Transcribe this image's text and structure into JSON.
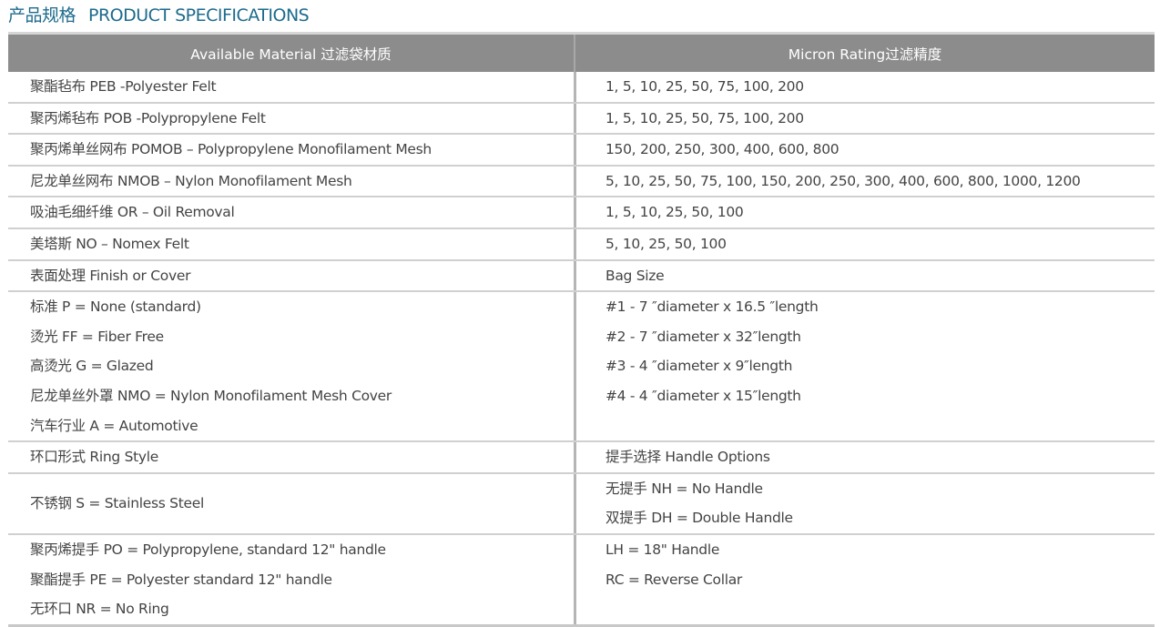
{
  "title": {
    "cn": "产品规格",
    "en": "PRODUCT  SPECIFICATIONS"
  },
  "header": {
    "col1": "Available Material 过滤袋材质",
    "col2": "Micron Rating过滤精度"
  },
  "rows": [
    {
      "left": [
        "聚酯毡布 PEB -Polyester Felt"
      ],
      "right": [
        "1, 5, 10, 25, 50, 75, 100, 200"
      ]
    },
    {
      "left": [
        "聚丙烯毡布 POB -Polypropylene Felt"
      ],
      "right": [
        "1, 5, 10, 25, 50, 75, 100, 200"
      ]
    },
    {
      "left": [
        "聚丙烯单丝网布 POMOB – Polypropylene Monofilament Mesh"
      ],
      "right": [
        "150, 200, 250, 300, 400, 600, 800"
      ]
    },
    {
      "left": [
        "尼龙单丝网布 NMOB – Nylon Monofilament Mesh"
      ],
      "right": [
        "5, 10, 25, 50, 75, 100, 150, 200, 250, 300, 400, 600, 800, 1000, 1200"
      ]
    },
    {
      "left": [
        "吸油毛细纤维 OR – Oil Removal"
      ],
      "right": [
        "1, 5, 10, 25, 50, 100"
      ]
    },
    {
      "left": [
        "美塔斯 NO – Nomex Felt"
      ],
      "right": [
        "5, 10, 25, 50, 100"
      ]
    },
    {
      "left": [
        "表面处理 Finish or Cover"
      ],
      "right": [
        "Bag Size"
      ]
    },
    {
      "left": [
        "标准 P = None (standard)",
        "烫光 FF = Fiber Free",
        "高烫光 G = Glazed",
        "尼龙单丝外罩 NMO = Nylon Monofilament Mesh Cover",
        "汽车行业 A = Automotive"
      ],
      "right": [
        "#1 - 7 ″diameter x 16.5 ″length",
        "#2 - 7 ″diameter x 32″length",
        "#3 - 4 ″diameter x 9″length",
        "#4 - 4 ″diameter x 15″length"
      ]
    },
    {
      "left": [
        "环口形式 Ring Style"
      ],
      "right": [
        "提手选择 Handle Options"
      ]
    },
    {
      "left": [
        "不锈钢 S = Stainless Steel"
      ],
      "right": [
        "无提手 NH = No Handle",
        "双提手 DH = Double Handle"
      ]
    },
    {
      "left": [
        "聚丙烯提手 PO = Polypropylene, standard 12\" handle",
        "聚酯提手 PE = Polyester standard 12\" handle",
        "无环口 NR = No Ring"
      ],
      "right": [
        "LH = 18\" Handle",
        "RC = Reverse Collar"
      ]
    }
  ]
}
